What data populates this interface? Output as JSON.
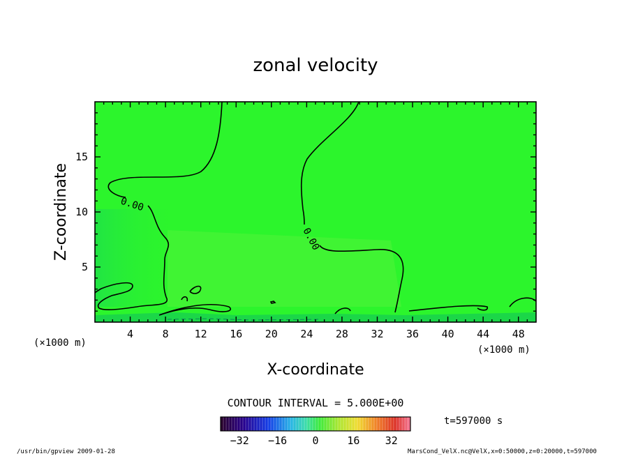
{
  "chart_data": {
    "type": "heatmap",
    "title": "zonal velocity",
    "xlabel": "X-coordinate",
    "ylabel": "Z-coordinate",
    "x_unit": "(×1000 m)",
    "y_unit": "(×1000 m)",
    "xlim": [
      0,
      50
    ],
    "ylim": [
      0,
      20
    ],
    "x_ticks": [
      "4",
      "8",
      "12",
      "16",
      "20",
      "24",
      "28",
      "32",
      "36",
      "40",
      "44",
      "48"
    ],
    "y_ticks": [
      "5",
      "10",
      "15"
    ],
    "contour_interval": "CONTOUR INTERVAL = 5.000E+00",
    "contour_labels": [
      "0.00",
      "0.00"
    ],
    "time": "t=597000 s",
    "colorbar": {
      "range": [
        -40,
        40
      ],
      "ticks": [
        "−32",
        "−16",
        "0",
        "16",
        "32"
      ]
    },
    "colors": {
      "background_field": "#2cf52c",
      "field_light": "#5cf53c",
      "field_dark": "#10d83c"
    }
  },
  "footer": {
    "left": "/usr/bin/gpview  2009-01-28",
    "right": "MarsCond_VelX.nc@VelX,x=0:50000,z=0:20000,t=597000"
  }
}
